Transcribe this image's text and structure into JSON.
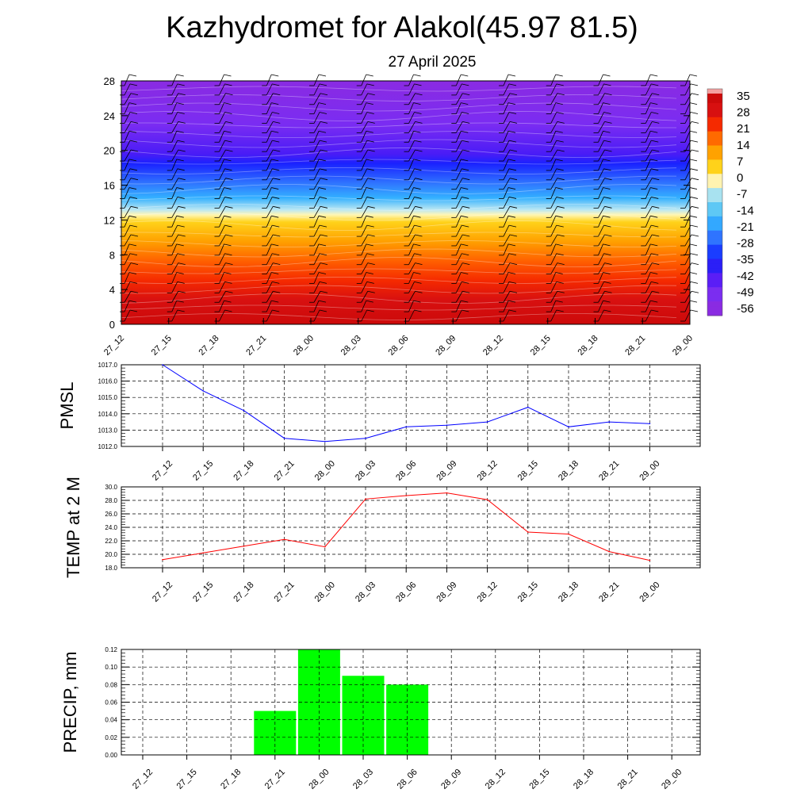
{
  "title": "Kazhydromet for Alakol(45.97 81.5)",
  "subtitle": "27 April 2025",
  "colors": {
    "pmsl_line": "#0000ff",
    "temp_line": "#ff0000",
    "precip_bar": "#00ff00",
    "grid": "#000000"
  },
  "chart_data": [
    {
      "type": "heatmap",
      "name": "vertical-cross-section",
      "x_categories": [
        "27_12",
        "27_15",
        "27_18",
        "27_21",
        "28_00",
        "28_03",
        "28_06",
        "28_09",
        "28_12",
        "28_15",
        "28_18",
        "28_21",
        "29_00"
      ],
      "y_ticks": [
        0,
        4,
        8,
        12,
        16,
        20,
        24,
        28
      ],
      "ylim": [
        0,
        28
      ],
      "colorbar_labels": [
        "35",
        "28",
        "21",
        "14",
        "7",
        "0",
        "-7",
        "-14",
        "-21",
        "-28",
        "-35",
        "-42",
        "-49",
        "-56"
      ],
      "colormap": [
        "#8a2be2",
        "#7b2df0",
        "#5a1ef6",
        "#2b1ff7",
        "#1a3dff",
        "#2f74ff",
        "#33a8ff",
        "#5ec8f5",
        "#a8e2f0",
        "#fff3b0",
        "#ffd21a",
        "#ffa200",
        "#ff6a00",
        "#f52a00",
        "#d81010",
        "#cc0a0a"
      ],
      "overlay": "wind barbs"
    },
    {
      "type": "line",
      "name": "pmsl",
      "ylabel": "PMSL",
      "categories": [
        "27_12",
        "27_15",
        "27_18",
        "27_21",
        "28_00",
        "28_03",
        "28_06",
        "28_09",
        "28_12",
        "28_15",
        "28_18",
        "28_21",
        "29_00"
      ],
      "values": [
        1017.0,
        1015.4,
        1014.2,
        1012.5,
        1012.3,
        1012.5,
        1013.2,
        1013.3,
        1013.5,
        1014.4,
        1013.2,
        1013.5,
        1013.4
      ],
      "ylim": [
        1012.0,
        1017.0
      ],
      "yticks": [
        "1012.0",
        "1013.0",
        "1014.0",
        "1015.0",
        "1016.0",
        "1017.0"
      ],
      "grid": true
    },
    {
      "type": "line",
      "name": "temp",
      "ylabel": "TEMP at 2 M",
      "categories": [
        "27_12",
        "27_15",
        "27_18",
        "27_21",
        "28_00",
        "28_03",
        "28_06",
        "28_09",
        "28_12",
        "28_15",
        "28_18",
        "28_21",
        "29_00"
      ],
      "values": [
        19.2,
        20.2,
        21.2,
        22.2,
        21.1,
        28.2,
        28.7,
        29.1,
        28.1,
        23.3,
        23.0,
        20.4,
        19.1
      ],
      "ylim": [
        18.0,
        30.0
      ],
      "yticks": [
        "18.0",
        "20.0",
        "22.0",
        "24.0",
        "26.0",
        "28.0",
        "30.0"
      ],
      "grid": true
    },
    {
      "type": "bar",
      "name": "precip",
      "ylabel": "PRECIP, mm",
      "categories": [
        "27_12",
        "27_15",
        "27_18",
        "27_21",
        "28_00",
        "28_03",
        "28_06",
        "28_09",
        "28_12",
        "28_15",
        "28_18",
        "28_21",
        "29_00"
      ],
      "values": [
        0,
        0,
        0,
        0.05,
        0.12,
        0.09,
        0.08,
        0,
        0,
        0,
        0,
        0,
        0
      ],
      "ylim": [
        0,
        0.12
      ],
      "yticks": [
        "0.00",
        "0.02",
        "0.04",
        "0.06",
        "0.08",
        "0.10",
        "0.12"
      ],
      "grid": true
    }
  ]
}
